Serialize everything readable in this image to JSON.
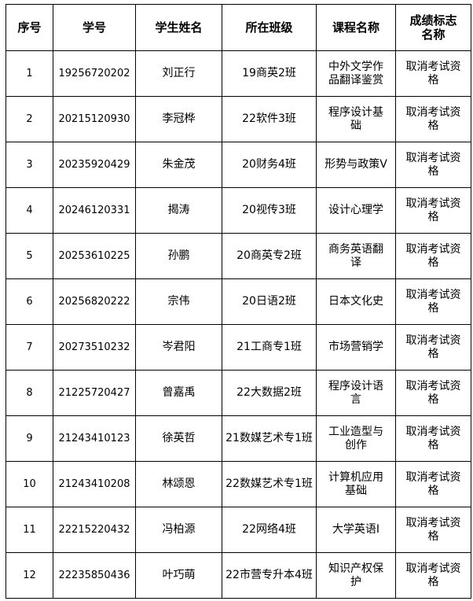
{
  "headers": [
    "序号",
    "学号",
    "学生姓名",
    "所在班级",
    "课程名称",
    "成绩标志名称"
  ],
  "rows": [
    {
      "no": "1",
      "id": "19256720202",
      "name": "刘正行",
      "class": "19商英2班",
      "course": "中外文学作品翻译鉴赏",
      "grade": "取消考试资格"
    },
    {
      "no": "2",
      "id": "20215120930",
      "name": "李冠桦",
      "class": "22软件3班",
      "course": "程序设计基础",
      "grade": "取消考试资格"
    },
    {
      "no": "3",
      "id": "20235920429",
      "name": "朱金茂",
      "class": "20财务4班",
      "course": "形势与政策Ⅴ",
      "grade": "取消考试资格"
    },
    {
      "no": "4",
      "id": "20246120331",
      "name": "揭涛",
      "class": "20视传3班",
      "course": "设计心理学",
      "grade": "取消考试资格"
    },
    {
      "no": "5",
      "id": "20253610225",
      "name": "孙鹏",
      "class": "20商英专2班",
      "course": "商务英语翻译",
      "grade": "取消考试资格"
    },
    {
      "no": "6",
      "id": "20256820222",
      "name": "宗伟",
      "class": "20日语2班",
      "course": "日本文化史",
      "grade": "取消考试资格"
    },
    {
      "no": "7",
      "id": "20273510232",
      "name": "岑君阳",
      "class": "21工商专1班",
      "course": "市场营销学",
      "grade": "取消考试资格"
    },
    {
      "no": "8",
      "id": "21225720427",
      "name": "曾嘉禹",
      "class": "22大数据2班",
      "course": "程序设计语言",
      "grade": "取消考试资格"
    },
    {
      "no": "9",
      "id": "21243410123",
      "name": "徐英哲",
      "class": "21数媒艺术专1班",
      "course": "工业造型与创作",
      "grade": "取消考试资格"
    },
    {
      "no": "10",
      "id": "21243410208",
      "name": "林颂恩",
      "class": "22数媒艺术专1班",
      "course": "计算机应用基础",
      "grade": "取消考试资格"
    },
    {
      "no": "11",
      "id": "22215220432",
      "name": "冯柏源",
      "class": "22网络4班",
      "course": "大学英语Ⅰ",
      "grade": "取消考试资格"
    },
    {
      "no": "12",
      "id": "22235850436",
      "name": "叶巧萌",
      "class": "22市营专升本4班",
      "course": "知识产权保护",
      "grade": "取消考试资格"
    }
  ]
}
